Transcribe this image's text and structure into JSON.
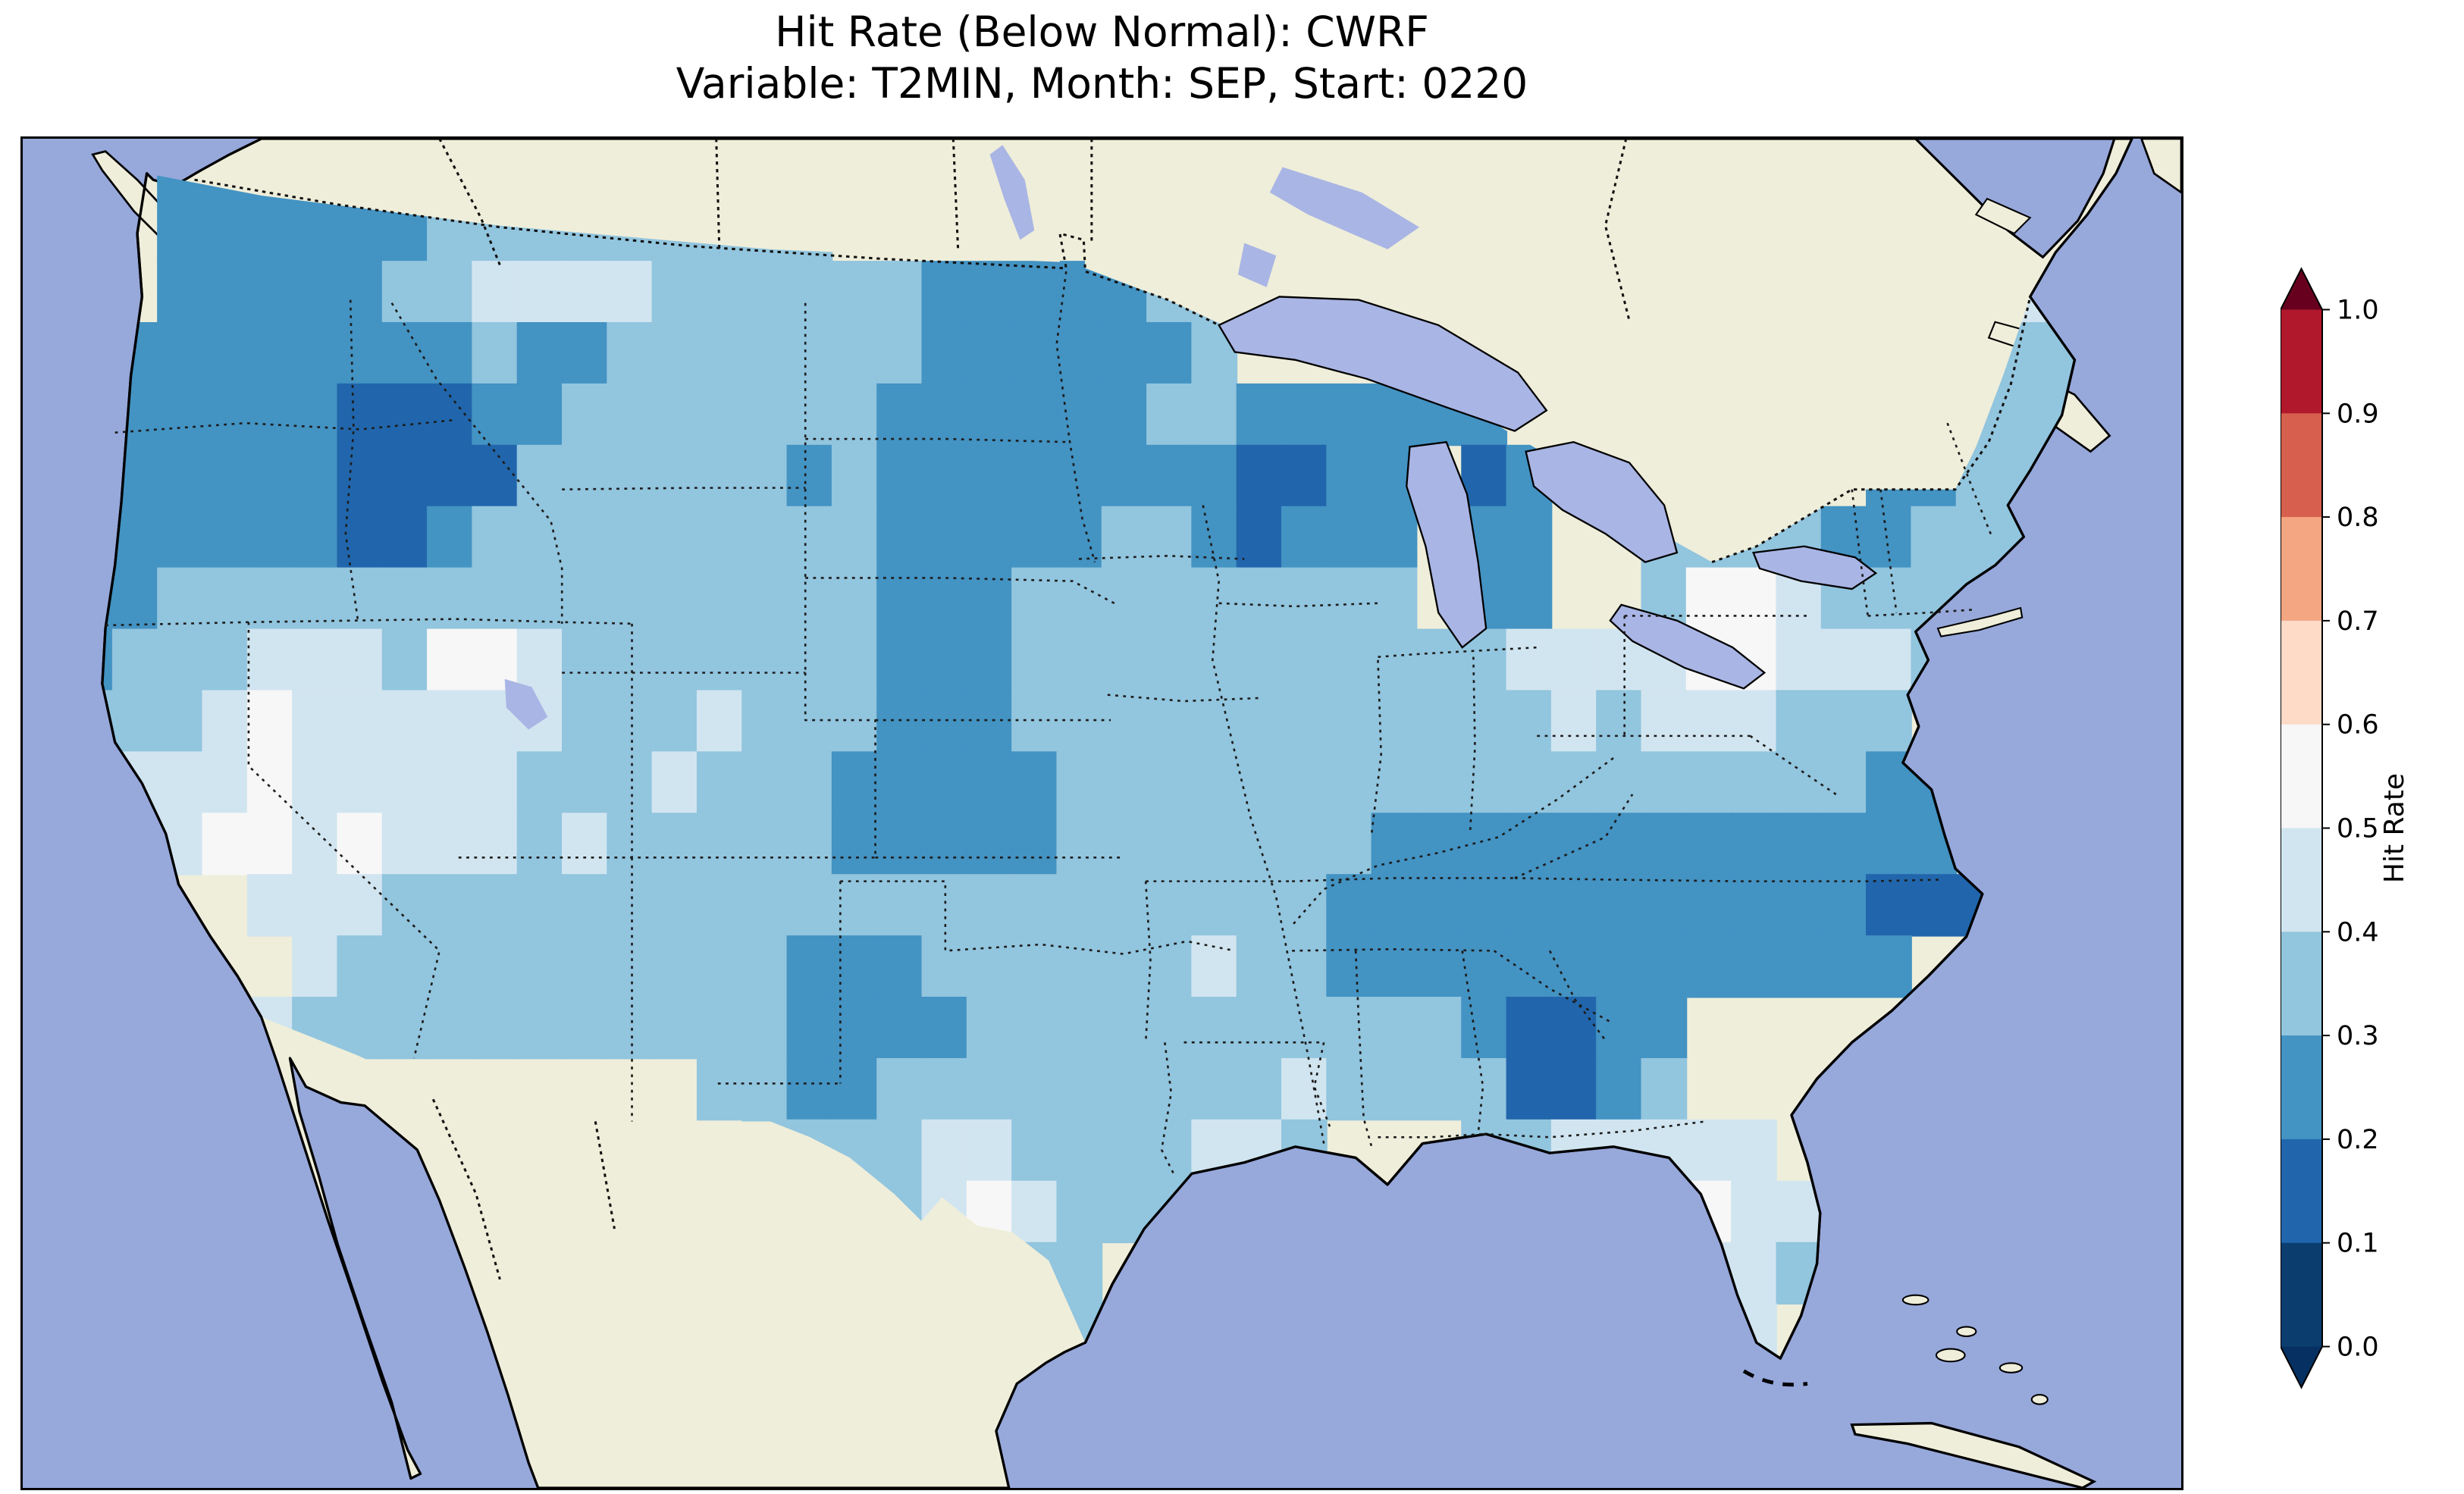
{
  "figure": {
    "title_line1": "Hit Rate (Below Normal): CWRF",
    "title_line2": "Variable: T2MIN, Month: SEP, Start: 0220"
  },
  "palette": {
    "ocean": "#97a8db",
    "land": "#efeeda",
    "lake": "#a9b5e4",
    "figure_background": "#ffffff"
  },
  "colorbar": {
    "label": "Hit Rate",
    "ticks": [
      "1.0",
      "0.9",
      "0.8",
      "0.7",
      "0.6",
      "0.5",
      "0.4",
      "0.3",
      "0.2",
      "0.1",
      "0.0"
    ],
    "segments_top_to_bottom": [
      "#b2182b",
      "#d6604d",
      "#f4a582",
      "#fddbc7",
      "#f7f7f7",
      "#d1e5f0",
      "#92c5de",
      "#4393c3",
      "#2166ac",
      "#0b3d6f"
    ],
    "over_color": "#67001f",
    "under_color": "#053061"
  },
  "chart_data": {
    "type": "heatmap",
    "title": "Hit Rate (Below Normal): CWRF",
    "subtitle": "Variable: T2MIN, Month: SEP, Start: 0220",
    "model": "CWRF",
    "metric": "Hit Rate",
    "category": "Below Normal",
    "variable": "T2MIN",
    "month": "SEP",
    "start": "0220",
    "colorbar_label": "Hit Rate",
    "colorbar_ticks": [
      1.0,
      0.9,
      0.8,
      0.7,
      0.6,
      0.5,
      0.4,
      0.3,
      0.2,
      0.1,
      0.0
    ],
    "colorbar_extend": "both",
    "legend_position": "right",
    "bin_colors": {
      "1": "#2166ac",
      "2": "#4393c3",
      "3": "#92c5de",
      "4": "#d1e5f0",
      "5": "#f7f7f7"
    },
    "bin_ranges": {
      "1": "0.1-0.2",
      "2": "0.2-0.3",
      "3": "0.3-0.4",
      "4": "0.4-0.5",
      "5": "0.5-0.6"
    },
    "grid": {
      "cols": 48,
      "rows": 22,
      "no_data": ".",
      "cells": [
        "...222..........................................",
        "...222222333333333..............................",
        "...222223344443333332222233................44...",
        "..2222222232233333332222223...............3333..",
        "..2222211122333333322222233222222........22333..",
        "..22222111133333323222222221122.12.......2233...",
        "..22222112333333333222223321222.22..333322333...",
        ".223333333333333333222333333333.22..355433333...",
        ".233344435543333333222333333333334444554443.....",
        ".33345444444333433322233333333333343444333......",
        ".344454444433343332222233333333333333333322.....",
        "..44554544434333332222233333332222222222222.....",
        ".....444333333333333333333333222222222222111....",
        "......433333333332223333334332222222222222......",
        "...4443333333333322223333333333321122...........",
        "...............3322333333333433331123...........",
        "................3333443333443...3344444.........",
        ".................333454333.........45544........",
        "...................34433............4443........",
        "......................33.............44.........",
        "................................................",
        "................................................"
      ]
    }
  }
}
